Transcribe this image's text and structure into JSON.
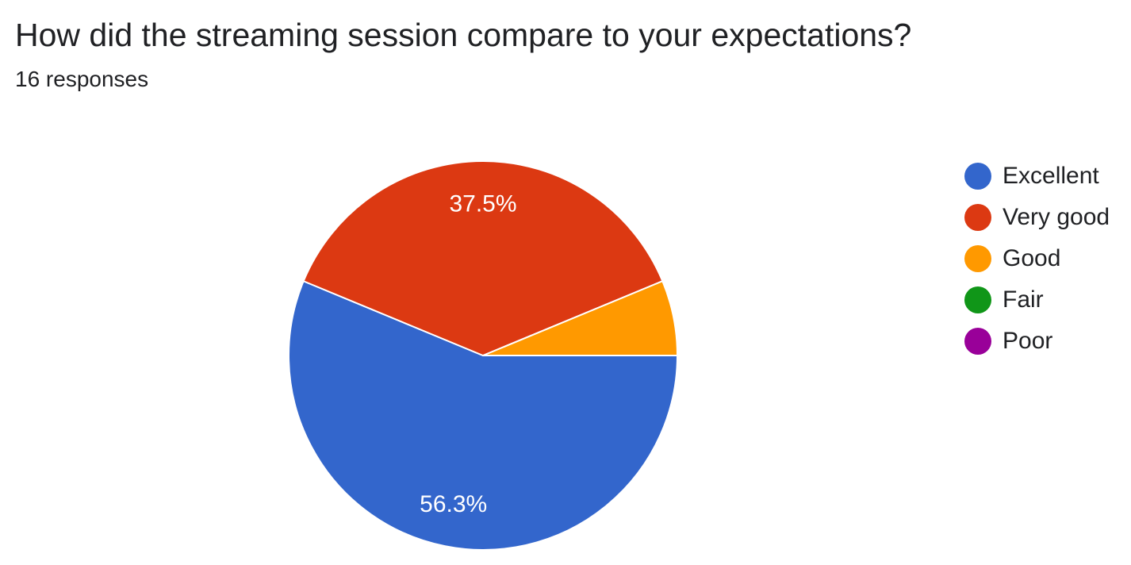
{
  "question": {
    "title": "How did the streaming session compare to your expectations?",
    "responses": "16 responses"
  },
  "chart_data": {
    "type": "pie",
    "total_responses": 16,
    "categories": [
      "Excellent",
      "Very good",
      "Good",
      "Fair",
      "Poor"
    ],
    "values": [
      9,
      6,
      1,
      0,
      0
    ],
    "percent_labels": [
      "56.3%",
      "37.5%",
      "",
      "",
      ""
    ],
    "colors": [
      "#3366cc",
      "#dc3912",
      "#ff9900",
      "#109618",
      "#990099"
    ],
    "legend_position": "right"
  }
}
